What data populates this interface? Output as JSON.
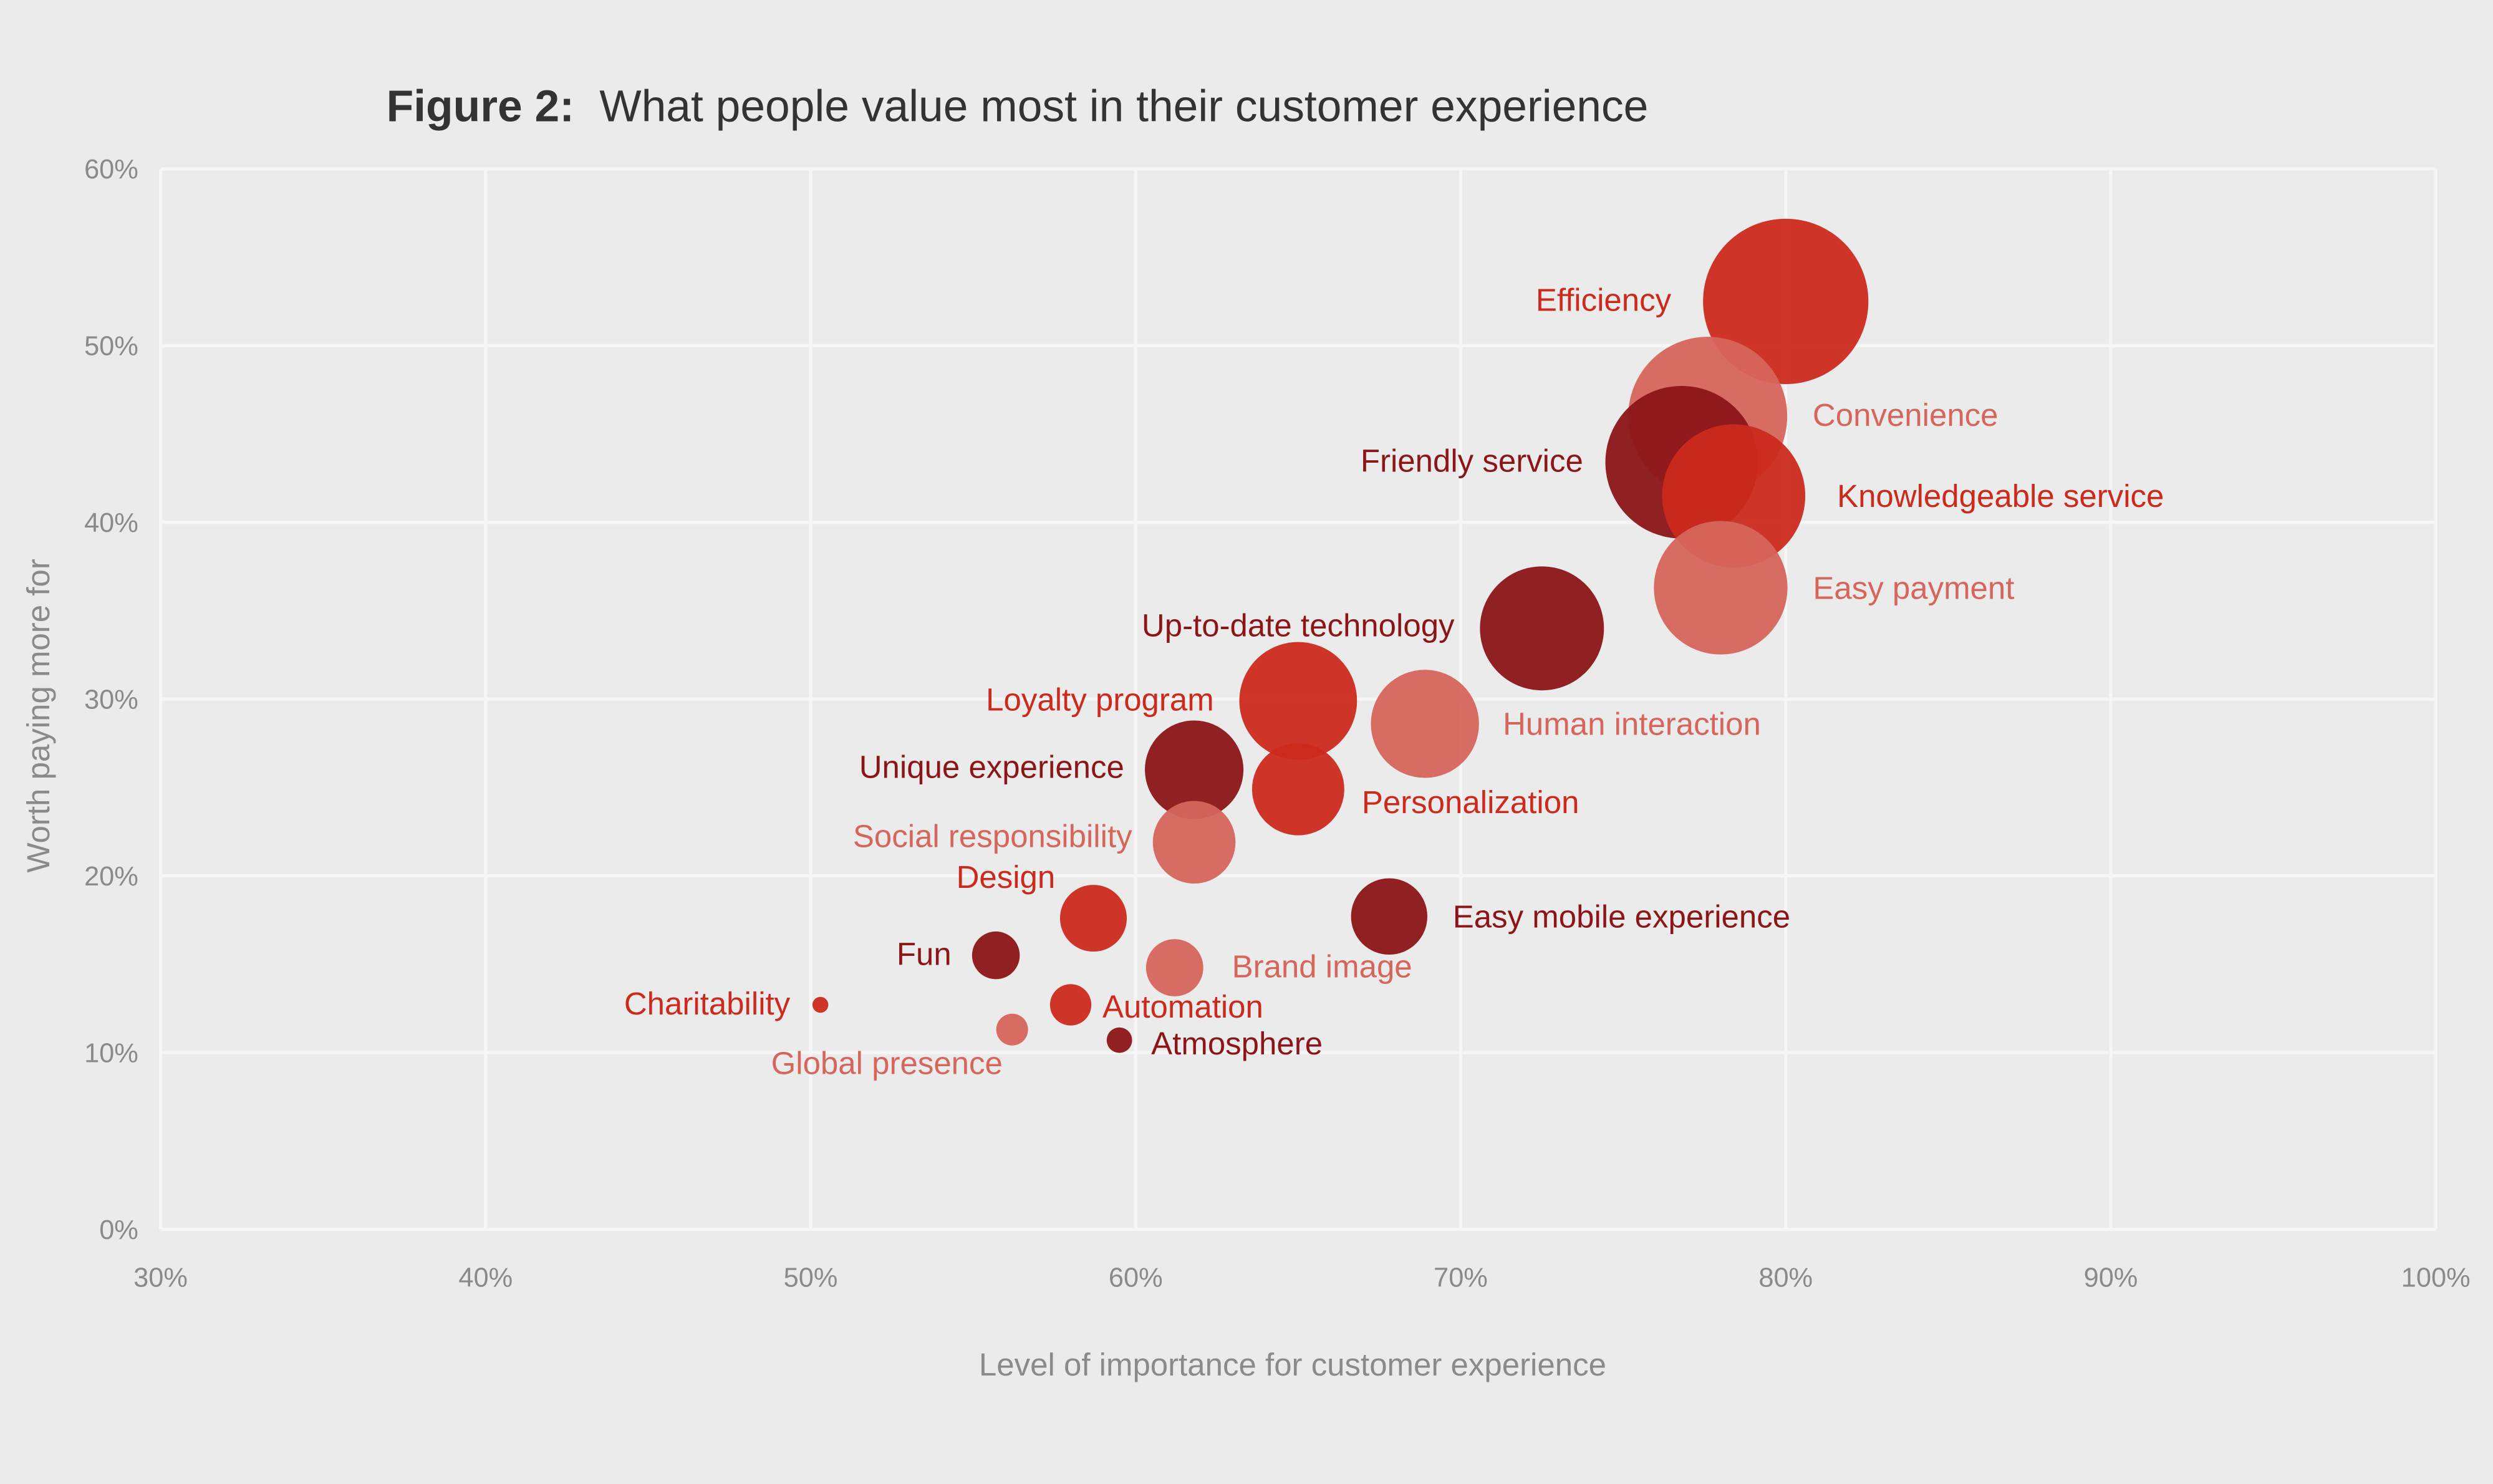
{
  "chart_data": {
    "type": "scatter",
    "subtype": "bubble",
    "title_prefix": "Figure 2:",
    "title": "What people value most in their customer experience",
    "xlabel": "Level of importance for customer experience",
    "ylabel": "Worth paying more for",
    "xlim": [
      30,
      100
    ],
    "ylim": [
      0,
      60
    ],
    "x_ticks": [
      "30%",
      "40%",
      "50%",
      "60%",
      "70%",
      "80%",
      "90%",
      "100%"
    ],
    "y_ticks": [
      "0%",
      "10%",
      "20%",
      "30%",
      "40%",
      "50%",
      "60%"
    ],
    "grid": true,
    "colors": {
      "red": "#cc2a1c",
      "dark": "#8c1518",
      "light": "#d6655b",
      "background": "#ebebeb"
    },
    "points": [
      {
        "label": "Efficiency",
        "x": 80.0,
        "y": 52.5,
        "size": 52,
        "color": "red"
      },
      {
        "label": "Convenience",
        "x": 77.6,
        "y": 46.0,
        "size": 50,
        "color": "light"
      },
      {
        "label": "Friendly service",
        "x": 76.8,
        "y": 43.4,
        "size": 48,
        "color": "dark"
      },
      {
        "label": "Knowledgeable service",
        "x": 78.4,
        "y": 41.5,
        "size": 45,
        "color": "red"
      },
      {
        "label": "Easy payment",
        "x": 78.0,
        "y": 36.3,
        "size": 42,
        "color": "light"
      },
      {
        "label": "Up-to-date technology",
        "x": 72.5,
        "y": 34.0,
        "size": 39,
        "color": "dark"
      },
      {
        "label": "Loyalty program",
        "x": 65.0,
        "y": 29.9,
        "size": 37,
        "color": "red"
      },
      {
        "label": "Human interaction",
        "x": 68.9,
        "y": 28.6,
        "size": 34,
        "color": "light"
      },
      {
        "label": "Unique experience",
        "x": 61.8,
        "y": 26.0,
        "size": 31,
        "color": "dark"
      },
      {
        "label": "Personalization",
        "x": 65.0,
        "y": 24.9,
        "size": 29,
        "color": "red"
      },
      {
        "label": "Social responsibility",
        "x": 61.8,
        "y": 21.9,
        "size": 26,
        "color": "light"
      },
      {
        "label": "Design",
        "x": 58.7,
        "y": 17.6,
        "size": 21,
        "color": "red"
      },
      {
        "label": "Easy mobile experience",
        "x": 67.8,
        "y": 17.7,
        "size": 24,
        "color": "dark"
      },
      {
        "label": "Brand image",
        "x": 61.2,
        "y": 14.8,
        "size": 18,
        "color": "light"
      },
      {
        "label": "Fun",
        "x": 55.7,
        "y": 15.5,
        "size": 15,
        "color": "dark"
      },
      {
        "label": "Automation",
        "x": 58.0,
        "y": 12.7,
        "size": 13,
        "color": "red"
      },
      {
        "label": "Charitability",
        "x": 50.3,
        "y": 12.7,
        "size": 5,
        "color": "red"
      },
      {
        "label": "Global presence",
        "x": 56.2,
        "y": 11.3,
        "size": 10,
        "color": "light"
      },
      {
        "label": "Atmosphere",
        "x": 59.5,
        "y": 10.7,
        "size": 8,
        "color": "dark"
      }
    ]
  }
}
